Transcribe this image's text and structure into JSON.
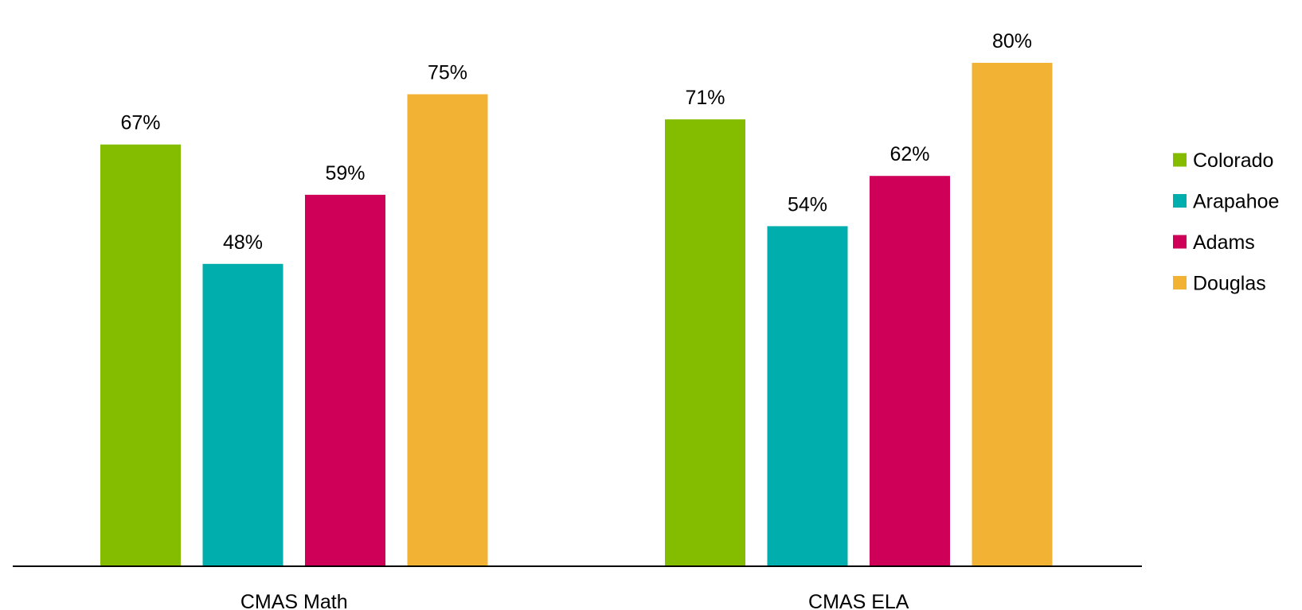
{
  "chart_data": {
    "type": "bar",
    "categories": [
      "CMAS Math",
      "CMAS ELA"
    ],
    "series": [
      {
        "name": "Colorado",
        "values": [
          67,
          71
        ],
        "labels": [
          "67%",
          "71%"
        ],
        "color": "#84BD00"
      },
      {
        "name": "Arapahoe",
        "values": [
          48,
          54
        ],
        "labels": [
          "48%",
          "54%"
        ],
        "color": "#00AEAD"
      },
      {
        "name": "Adams",
        "values": [
          59,
          62
        ],
        "labels": [
          "59%",
          "62%"
        ],
        "color": "#CE0058"
      },
      {
        "name": "Douglas",
        "values": [
          75,
          80
        ],
        "labels": [
          "75%",
          "80%"
        ],
        "color": "#F2B335"
      }
    ],
    "ylim": [
      0,
      100
    ],
    "value_suffix": "%",
    "grid": false,
    "legend": "right",
    "title": "",
    "xlabel": "",
    "ylabel": ""
  }
}
